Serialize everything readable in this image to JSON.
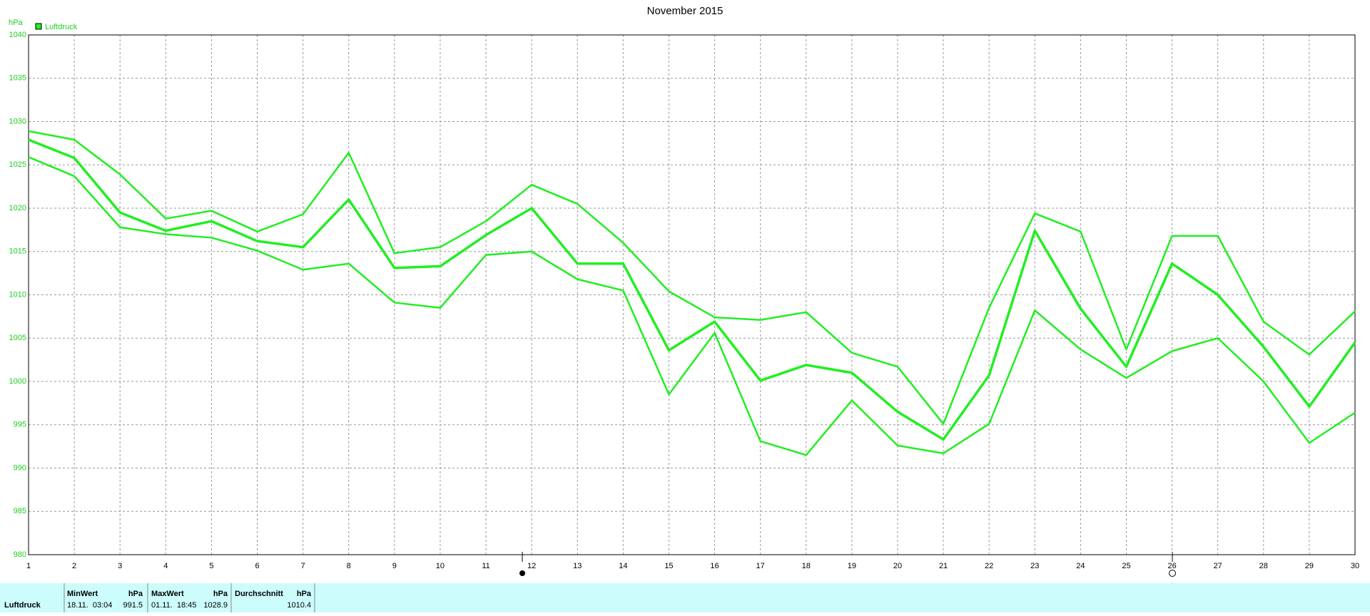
{
  "chart_data": {
    "type": "line",
    "title": "November 2015",
    "y_label": "hPa",
    "legend": "Luftdruck",
    "x": [
      1,
      2,
      3,
      4,
      5,
      6,
      7,
      8,
      9,
      10,
      11,
      12,
      13,
      14,
      15,
      16,
      17,
      18,
      19,
      20,
      21,
      22,
      23,
      24,
      25,
      26,
      27,
      28,
      29,
      30
    ],
    "xlim": [
      1,
      30
    ],
    "xticks": [
      1,
      2,
      3,
      4,
      5,
      6,
      7,
      8,
      9,
      10,
      11,
      12,
      13,
      14,
      15,
      16,
      17,
      18,
      19,
      20,
      21,
      22,
      23,
      24,
      25,
      26,
      27,
      28,
      29,
      30
    ],
    "ylim": [
      980,
      1040
    ],
    "yticks": [
      980,
      985,
      990,
      995,
      1000,
      1005,
      1010,
      1015,
      1020,
      1025,
      1030,
      1035,
      1040
    ],
    "grid": true,
    "series": [
      {
        "color": "#22ee22",
        "values": [
          1028.9,
          1027.9,
          1023.9,
          1018.8,
          1019.7,
          1017.3,
          1019.3,
          1026.4,
          1014.8,
          1015.5,
          1018.5,
          1022.7,
          1020.5,
          1016.0,
          1010.4,
          1007.4,
          1007.1,
          1008.0,
          1003.3,
          1001.7,
          995.1,
          1008.5,
          1019.4,
          1017.3,
          1003.7,
          1016.8,
          1016.8,
          1006.9,
          1003.1,
          1008.1
        ]
      },
      {
        "color": "#22ee22",
        "values": [
          1027.9,
          1025.8,
          1019.5,
          1017.4,
          1018.5,
          1016.2,
          1015.5,
          1021.0,
          1013.1,
          1013.3,
          1016.9,
          1020.0,
          1013.6,
          1013.6,
          1003.6,
          1006.9,
          1000.1,
          1001.9,
          1001.0,
          996.5,
          993.3,
          1000.7,
          1017.4,
          1008.4,
          1001.7,
          1013.6,
          1010.0,
          1004.0,
          997.1,
          1004.5
        ]
      },
      {
        "color": "#22ee22",
        "values": [
          1025.9,
          1023.7,
          1017.8,
          1017.0,
          1016.6,
          1015.1,
          1012.9,
          1013.6,
          1009.1,
          1008.5,
          1014.6,
          1015.0,
          1011.8,
          1010.5,
          998.5,
          1005.6,
          993.1,
          991.5,
          997.8,
          992.6,
          991.7,
          995.1,
          1008.2,
          1003.7,
          1000.4,
          1003.5,
          1005.0,
          1000.0,
          992.9,
          996.4
        ]
      }
    ]
  },
  "table": {
    "row_label": "Luftdruck",
    "header": [
      "MinWert",
      "hPa",
      "MaxWert",
      "hPa",
      "Durchschnitt",
      "hPa"
    ],
    "row": [
      "18.11.  03:04",
      "991.5",
      "01.11.  18:45",
      "1028.9",
      "1010.4"
    ]
  }
}
